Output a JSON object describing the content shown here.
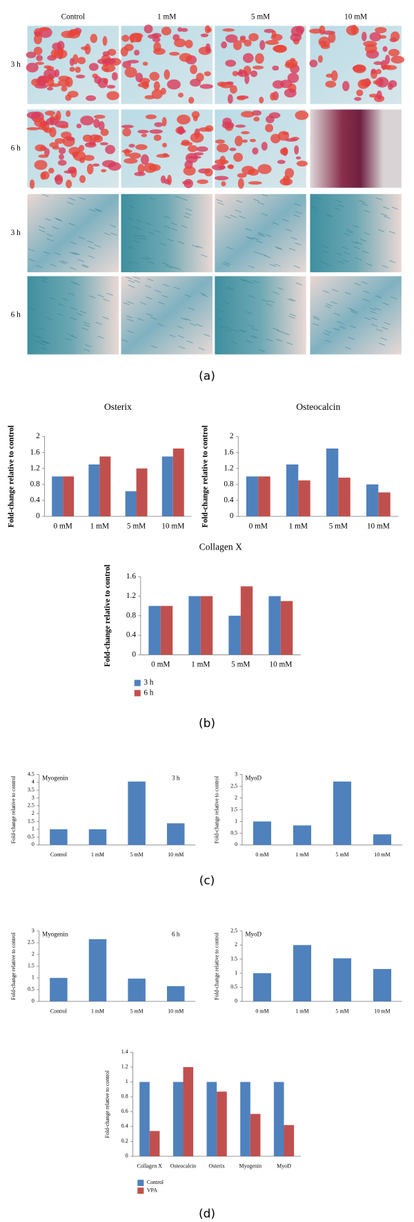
{
  "figure": {
    "column_labels": [
      "Control",
      "1 mM",
      "5 mM",
      "10 mM"
    ],
    "row_labels": [
      "3 h",
      "6 h",
      "3 h",
      "6 h"
    ],
    "panel_labels": [
      "(a)",
      "(b)",
      "(c)",
      "(d)"
    ]
  },
  "chart_data": [
    {
      "type": "bar",
      "title": "Osterix",
      "y_label": "Fold-change relative to control",
      "categories": [
        "0 mM",
        "1 mM",
        "5 mM",
        "10 mM"
      ],
      "series": [
        {
          "color": "#4f81bd",
          "values": [
            1,
            1.3,
            0.63,
            1.5
          ]
        },
        {
          "color": "#c0504d",
          "values": [
            1,
            1.5,
            1.2,
            1.7
          ]
        }
      ],
      "ylim": [
        0,
        2
      ],
      "yticks": [
        0,
        0.4,
        0.8,
        1.2,
        1.6,
        2
      ]
    },
    {
      "type": "bar",
      "title": "Osteocalcin",
      "y_label": "Fold-change relative to control",
      "categories": [
        "0 mM",
        "1 mM",
        "5 mM",
        "10 mM"
      ],
      "series": [
        {
          "color": "#4f81bd",
          "values": [
            1,
            1.3,
            1.7,
            0.8
          ]
        },
        {
          "color": "#c0504d",
          "values": [
            1,
            0.9,
            0.97,
            0.6
          ]
        }
      ],
      "ylim": [
        0,
        2
      ],
      "yticks": [
        0,
        0.4,
        0.8,
        1.2,
        1.6,
        2
      ]
    },
    {
      "type": "bar",
      "title": "Collagen X",
      "y_label": "Fold-change relative to control",
      "categories": [
        "0 mM",
        "1 mM",
        "5 mM",
        "10 mM"
      ],
      "series": [
        {
          "name": "3 h",
          "color": "#4f81bd",
          "values": [
            1,
            1.2,
            0.8,
            1.2
          ]
        },
        {
          "name": "6 h",
          "color": "#c0504d",
          "values": [
            1,
            1.2,
            1.4,
            1.1
          ]
        }
      ],
      "ylim": [
        0,
        1.6
      ],
      "yticks": [
        0,
        0.4,
        0.8,
        1.2,
        1.6
      ],
      "legend": "bottom-left"
    },
    {
      "type": "bar",
      "title": "Myogenin",
      "annotation": "3 h",
      "y_label": "Fold-change relative to control",
      "categories": [
        "Control",
        "1 mM",
        "5 mM",
        "10 mM"
      ],
      "values": [
        1,
        1,
        4.05,
        1.38
      ],
      "color": "#4f81bd",
      "ylim": [
        0,
        4.5
      ],
      "yticks": [
        0,
        0.5,
        1,
        1.5,
        2,
        2.5,
        3,
        3.5,
        4,
        4.5
      ]
    },
    {
      "type": "bar",
      "title": "MyoD",
      "y_label": "Fold-change relative to control",
      "categories": [
        "0 mM",
        "1 mM",
        "5 mM",
        "10 mM"
      ],
      "values": [
        1,
        0.83,
        2.7,
        0.45
      ],
      "color": "#4f81bd",
      "ylim": [
        0,
        3
      ],
      "yticks": [
        0,
        0.5,
        1,
        1.5,
        2,
        2.5,
        3
      ]
    },
    {
      "type": "bar",
      "title": "Myogenin",
      "annotation": "6 h",
      "y_label": "Fold-change relative to control",
      "categories": [
        "Control",
        "1 mM",
        "5 mM",
        "10 mM"
      ],
      "values": [
        1,
        2.65,
        0.97,
        0.65
      ],
      "color": "#4f81bd",
      "ylim": [
        0,
        3
      ],
      "yticks": [
        0,
        0.5,
        1,
        1.5,
        2,
        2.5,
        3
      ]
    },
    {
      "type": "bar",
      "title": "MyoD",
      "y_label": "Fold-change relative to control",
      "categories": [
        "0 mM",
        "1 mM",
        "5 mM",
        "10 mM"
      ],
      "values": [
        1,
        2,
        1.53,
        1.15
      ],
      "color": "#4f81bd",
      "ylim": [
        0,
        2.5
      ],
      "yticks": [
        0,
        0.5,
        1,
        1.5,
        2,
        2.5
      ]
    },
    {
      "type": "bar",
      "y_label": "Fold-change relative to control",
      "categories": [
        "Collagen X",
        "Osteocalcin",
        "Osterix",
        "Myogenin",
        "MyoD"
      ],
      "series": [
        {
          "name": "Control",
          "color": "#4f81bd",
          "values": [
            1,
            1,
            1,
            1,
            1
          ]
        },
        {
          "name": "VPA",
          "color": "#c0504d",
          "values": [
            0.34,
            1.2,
            0.87,
            0.57,
            0.42
          ]
        }
      ],
      "ylim": [
        0,
        1.4
      ],
      "yticks": [
        0,
        0.2,
        0.4,
        0.6,
        0.8,
        1,
        1.2,
        1.4
      ],
      "legend": "bottom-left"
    }
  ]
}
